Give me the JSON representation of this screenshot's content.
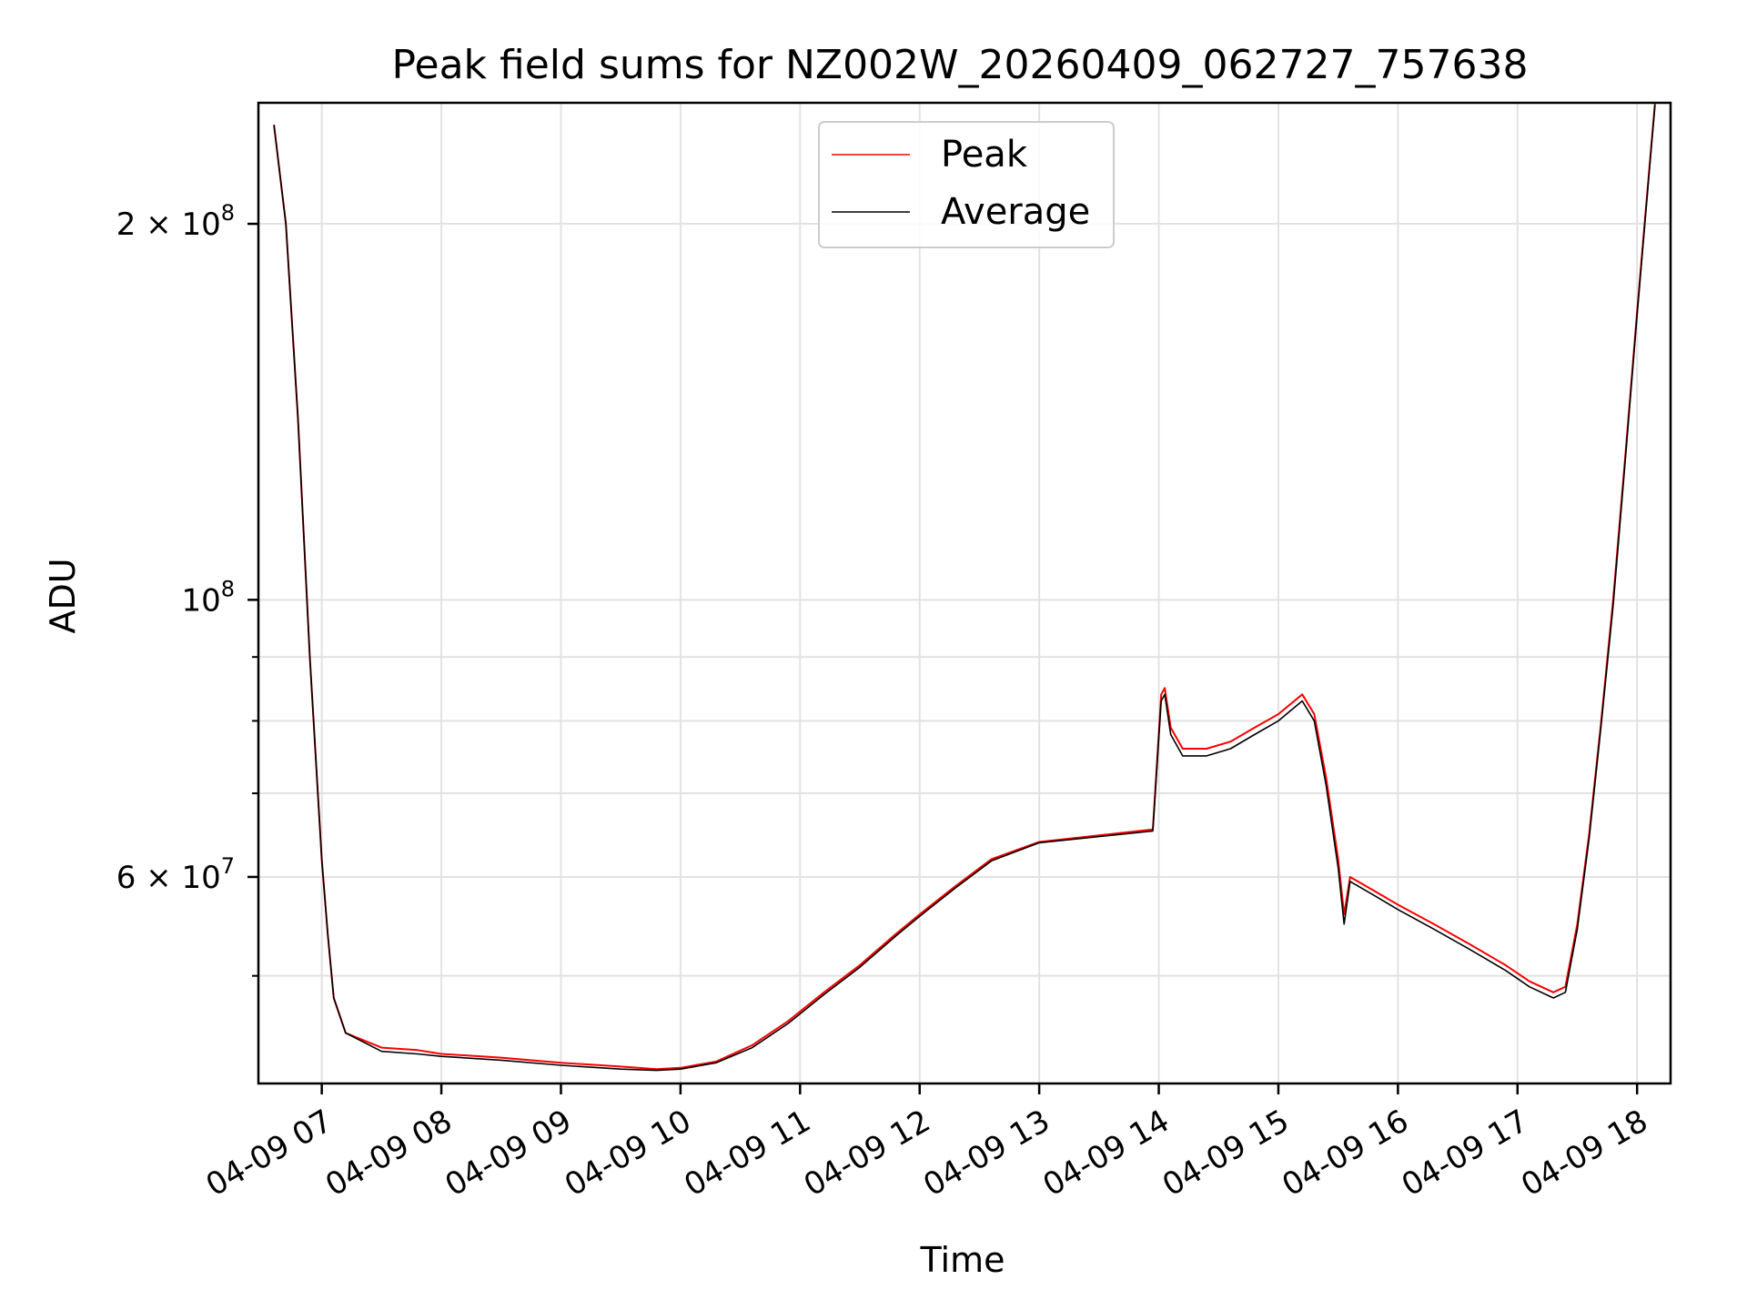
{
  "chart_data": {
    "type": "line",
    "title": "Peak field sums for NZ002W_20260409_062727_757638",
    "xlabel": "Time",
    "ylabel": "ADU",
    "yscale": "log",
    "ylim": [
      41000000,
      250000000
    ],
    "xlim": [
      6.47,
      18.28
    ],
    "grid": true,
    "legend_position": "upper-center",
    "x_ticks": [
      {
        "value": 7,
        "label": "04-09 07"
      },
      {
        "value": 8,
        "label": "04-09 08"
      },
      {
        "value": 9,
        "label": "04-09 09"
      },
      {
        "value": 10,
        "label": "04-09 10"
      },
      {
        "value": 11,
        "label": "04-09 11"
      },
      {
        "value": 12,
        "label": "04-09 12"
      },
      {
        "value": 13,
        "label": "04-09 13"
      },
      {
        "value": 14,
        "label": "04-09 14"
      },
      {
        "value": 15,
        "label": "04-09 15"
      },
      {
        "value": 16,
        "label": "04-09 16"
      },
      {
        "value": 17,
        "label": "04-09 17"
      },
      {
        "value": 18,
        "label": "04-09 18"
      }
    ],
    "y_major_ticks": [
      {
        "value": 60000000,
        "mantissa": "6 × 10",
        "exponent": "7"
      },
      {
        "value": 100000000,
        "mantissa": "10",
        "exponent": "8"
      },
      {
        "value": 200000000,
        "mantissa": "2 × 10",
        "exponent": "8"
      }
    ],
    "y_minor_ticks": [
      50000000,
      70000000,
      80000000,
      90000000
    ],
    "series": [
      {
        "name": "Peak",
        "color": "#ff0000",
        "x": [
          6.6,
          6.7,
          6.8,
          6.9,
          7.0,
          7.05,
          7.1,
          7.2,
          7.5,
          7.8,
          8.0,
          8.5,
          9.0,
          9.5,
          9.8,
          10.0,
          10.3,
          10.6,
          10.9,
          11.2,
          11.5,
          11.8,
          12.0,
          12.3,
          12.6,
          13.0,
          13.95,
          14.02,
          14.05,
          14.1,
          14.2,
          14.4,
          14.6,
          14.8,
          15.0,
          15.2,
          15.3,
          15.4,
          15.5,
          15.55,
          15.6,
          15.8,
          16.0,
          16.3,
          16.6,
          16.9,
          17.1,
          17.3,
          17.4,
          17.5,
          17.6,
          17.7,
          17.8,
          17.9,
          18.0,
          18.1,
          18.15
        ],
        "values": [
          240000000,
          200000000,
          140000000,
          90000000,
          62000000,
          54000000,
          48000000,
          45000000,
          43800000,
          43600000,
          43300000,
          43000000,
          42600000,
          42300000,
          42100000,
          42200000,
          42700000,
          44000000,
          46000000,
          48500000,
          51000000,
          54000000,
          56000000,
          59000000,
          62000000,
          64000000,
          65500000,
          84000000,
          85000000,
          79000000,
          76000000,
          76000000,
          77000000,
          79000000,
          81000000,
          84000000,
          81000000,
          72000000,
          62000000,
          56000000,
          60000000,
          58500000,
          57000000,
          55000000,
          53000000,
          51000000,
          49500000,
          48500000,
          49000000,
          55000000,
          65000000,
          80000000,
          100000000,
          130000000,
          170000000,
          220000000,
          250000000
        ]
      },
      {
        "name": "Average",
        "color": "#000000",
        "x": [
          6.6,
          6.7,
          6.8,
          6.9,
          7.0,
          7.05,
          7.1,
          7.2,
          7.5,
          7.8,
          8.0,
          8.5,
          9.0,
          9.5,
          9.8,
          10.0,
          10.3,
          10.6,
          10.9,
          11.2,
          11.5,
          11.8,
          12.0,
          12.3,
          12.6,
          13.0,
          13.95,
          14.02,
          14.05,
          14.1,
          14.2,
          14.4,
          14.6,
          14.8,
          15.0,
          15.2,
          15.3,
          15.4,
          15.5,
          15.55,
          15.6,
          15.8,
          16.0,
          16.3,
          16.6,
          16.9,
          17.1,
          17.3,
          17.4,
          17.5,
          17.6,
          17.7,
          17.8,
          17.9,
          18.0,
          18.1,
          18.15
        ],
        "values": [
          240000000,
          200000000,
          140000000,
          90000000,
          62000000,
          54000000,
          48000000,
          45000000,
          43500000,
          43300000,
          43100000,
          42800000,
          42400000,
          42100000,
          42000000,
          42100000,
          42600000,
          43800000,
          45800000,
          48300000,
          50800000,
          53800000,
          55800000,
          58800000,
          61800000,
          63900000,
          65300000,
          83000000,
          84000000,
          78000000,
          75000000,
          75000000,
          76000000,
          78000000,
          80000000,
          83000000,
          80000000,
          71000000,
          61000000,
          55000000,
          59500000,
          58000000,
          56500000,
          54500000,
          52500000,
          50500000,
          49000000,
          48000000,
          48500000,
          54500000,
          64500000,
          79500000,
          99000000,
          129000000,
          169000000,
          219000000,
          249000000
        ]
      }
    ]
  }
}
